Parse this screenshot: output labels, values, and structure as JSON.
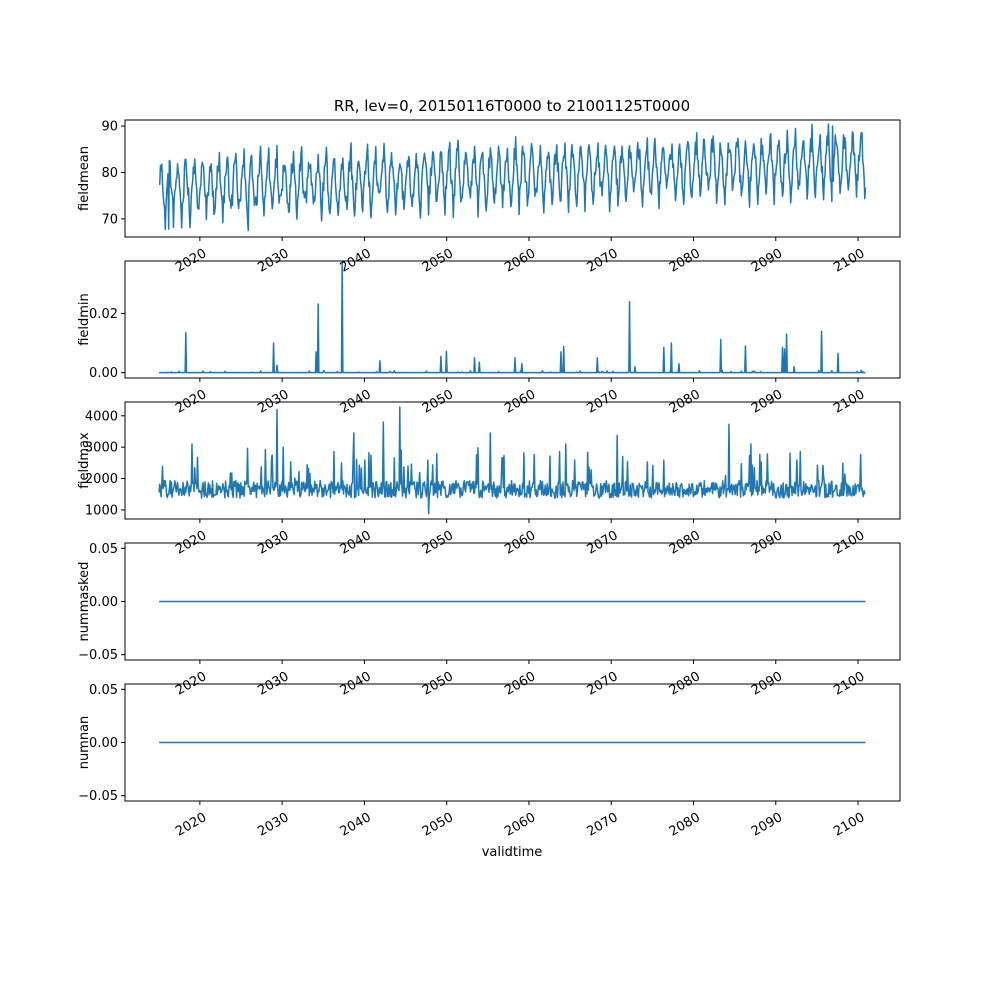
{
  "figure": {
    "title": "RR, lev=0, 20150116T0000 to 21001125T0000",
    "xlabel": "validtime"
  },
  "chart_data": [
    {
      "type": "line",
      "ylabel": "fieldmean",
      "color": "#1f77b4",
      "xlim": [
        2010.9,
        2105.1
      ],
      "ylim": [
        66.1,
        91.3
      ],
      "yticks": [
        70,
        80,
        90
      ],
      "ytick_labels": [
        "70",
        "80",
        "90"
      ],
      "xticks": [
        2020,
        2030,
        2040,
        2050,
        2060,
        2070,
        2080,
        2090,
        2100
      ],
      "xtick_labels": [
        "2020",
        "2030",
        "2040",
        "2050",
        "2060",
        "2070",
        "2080",
        "2090",
        "2100"
      ],
      "x_range": [
        2015.04,
        2100.9
      ],
      "series_shape": {
        "kind": "seasonal",
        "start": 76.5,
        "end": 82.5,
        "amp": 4.5,
        "noise": 2.2,
        "dips_to": 69,
        "dip_trend": 6,
        "n": 1031
      },
      "peaks": [
        [
          2016.2,
          67.8
        ],
        [
          2025.9,
          67.5
        ],
        [
          2029.4,
          85.8
        ],
        [
          2096.9,
          90.0
        ],
        [
          2100.5,
          88.5
        ]
      ]
    },
    {
      "type": "line",
      "ylabel": "fieldmin",
      "color": "#1f77b4",
      "xlim": [
        2010.9,
        2105.1
      ],
      "ylim": [
        -0.0018,
        0.0377
      ],
      "yticks": [
        0.0,
        0.02
      ],
      "ytick_labels": [
        "0.00",
        "0.02"
      ],
      "xticks": [
        2020,
        2030,
        2040,
        2050,
        2060,
        2070,
        2080,
        2090,
        2100
      ],
      "xtick_labels": [
        "2020",
        "2030",
        "2040",
        "2050",
        "2060",
        "2070",
        "2080",
        "2090",
        "2100"
      ],
      "x_range": [
        2015.04,
        2100.9
      ],
      "series_shape": {
        "kind": "spikes",
        "baseline": 0.0,
        "n": 1031
      },
      "spikes": [
        [
          2018.3,
          0.0135
        ],
        [
          2029.0,
          0.01
        ],
        [
          2029.4,
          0.0025
        ],
        [
          2034.1,
          0.007
        ],
        [
          2034.4,
          0.0232
        ],
        [
          2037.3,
          0.037
        ],
        [
          2041.9,
          0.004
        ],
        [
          2049.3,
          0.0055
        ],
        [
          2050.0,
          0.0072
        ],
        [
          2053.4,
          0.005
        ],
        [
          2054.0,
          0.0035
        ],
        [
          2058.3,
          0.005
        ],
        [
          2059.1,
          0.003
        ],
        [
          2063.9,
          0.007
        ],
        [
          2064.2,
          0.0088
        ],
        [
          2068.3,
          0.005
        ],
        [
          2072.2,
          0.024
        ],
        [
          2072.9,
          0.002
        ],
        [
          2076.4,
          0.0085
        ],
        [
          2077.3,
          0.01
        ],
        [
          2078.2,
          0.003
        ],
        [
          2083.3,
          0.0112
        ],
        [
          2086.3,
          0.009
        ],
        [
          2090.8,
          0.0085
        ],
        [
          2091.3,
          0.013
        ],
        [
          2091.1,
          0.008
        ],
        [
          2092.2,
          0.002
        ],
        [
          2095.6,
          0.014
        ],
        [
          2097.6,
          0.0065
        ],
        [
          2100.4,
          0.0008
        ]
      ]
    },
    {
      "type": "line",
      "ylabel": "fieldmax",
      "color": "#1f77b4",
      "xlim": [
        2010.9,
        2105.1
      ],
      "ylim": [
        710,
        4440
      ],
      "yticks": [
        1000,
        2000,
        3000,
        4000
      ],
      "ytick_labels": [
        "1000",
        "2000",
        "3000",
        "4000"
      ],
      "xticks": [
        2020,
        2030,
        2040,
        2050,
        2060,
        2070,
        2080,
        2090,
        2100
      ],
      "xtick_labels": [
        "2020",
        "2030",
        "2040",
        "2050",
        "2060",
        "2070",
        "2080",
        "2090",
        "2100"
      ],
      "x_range": [
        2015.04,
        2100.9
      ],
      "series_shape": {
        "kind": "noisy",
        "base": 1600,
        "amp": 400,
        "min": 950,
        "n": 1031
      },
      "peaks": [
        [
          2029.4,
          4200
        ],
        [
          2044.3,
          4280
        ],
        [
          2042.3,
          3800
        ],
        [
          2038.7,
          3450
        ],
        [
          2055.3,
          3450
        ],
        [
          2070.7,
          3370
        ],
        [
          2084.3,
          3730
        ],
        [
          2087.0,
          3100
        ],
        [
          2053.8,
          2980
        ],
        [
          2064.5,
          3100
        ],
        [
          2019.0,
          3100
        ],
        [
          2030.1,
          3000
        ],
        [
          2047.8,
          880
        ]
      ]
    },
    {
      "type": "line",
      "ylabel": "nummasked",
      "color": "#1f77b4",
      "xlim": [
        2010.9,
        2105.1
      ],
      "ylim": [
        -0.055,
        0.055
      ],
      "yticks": [
        -0.05,
        0.0,
        0.05
      ],
      "ytick_labels": [
        "−0.05",
        "0.00",
        "0.05"
      ],
      "xticks": [
        2020,
        2030,
        2040,
        2050,
        2060,
        2070,
        2080,
        2090,
        2100
      ],
      "xtick_labels": [
        "2020",
        "2030",
        "2040",
        "2050",
        "2060",
        "2070",
        "2080",
        "2090",
        "2100"
      ],
      "x": [
        2015.04,
        2100.9
      ],
      "y": [
        0.0,
        0.0
      ]
    },
    {
      "type": "line",
      "ylabel": "numnan",
      "color": "#1f77b4",
      "xlim": [
        2010.9,
        2105.1
      ],
      "ylim": [
        -0.055,
        0.055
      ],
      "yticks": [
        -0.05,
        0.0,
        0.05
      ],
      "ytick_labels": [
        "−0.05",
        "0.00",
        "0.05"
      ],
      "xticks": [
        2020,
        2030,
        2040,
        2050,
        2060,
        2070,
        2080,
        2090,
        2100
      ],
      "xtick_labels": [
        "2020",
        "2030",
        "2040",
        "2050",
        "2060",
        "2070",
        "2080",
        "2090",
        "2100"
      ],
      "x": [
        2015.04,
        2100.9
      ],
      "y": [
        0.0,
        0.0
      ]
    }
  ]
}
